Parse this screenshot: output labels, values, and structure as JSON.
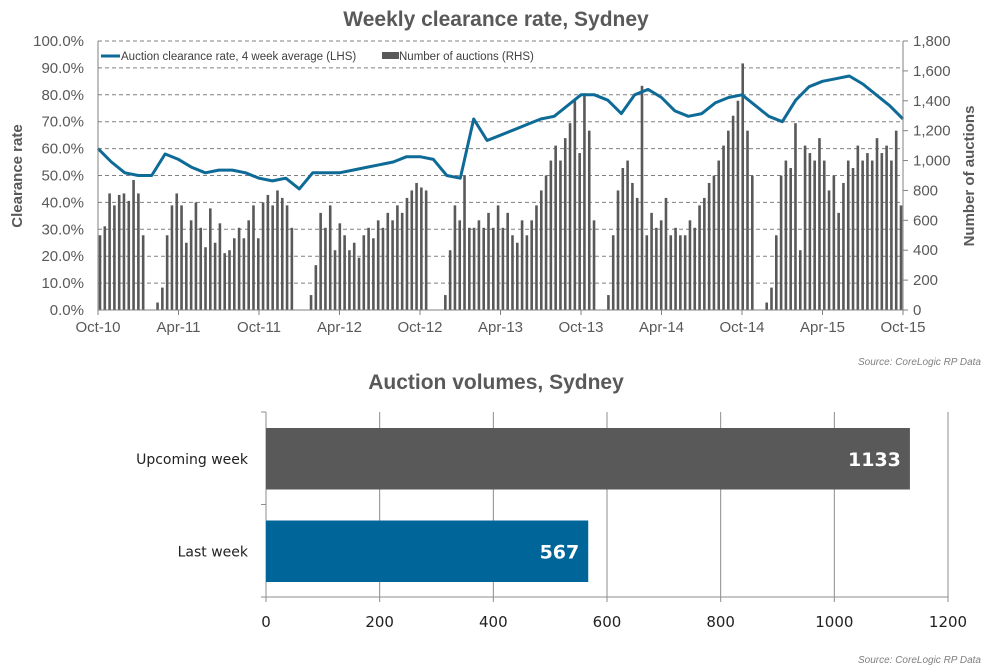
{
  "chart_data": [
    {
      "type": "bar+line",
      "title": "Weekly clearance rate, Sydney",
      "ylabel_left": "Clearance rate",
      "ylabel_right": "Number of auctions",
      "ylim_left": [
        0,
        100
      ],
      "ylim_right": [
        0,
        1800
      ],
      "left_ticks": [
        "0.0%",
        "10.0%",
        "20.0%",
        "30.0%",
        "40.0%",
        "50.0%",
        "60.0%",
        "70.0%",
        "80.0%",
        "90.0%",
        "100.0%"
      ],
      "right_ticks": [
        "0",
        "200",
        "400",
        "600",
        "800",
        "1,000",
        "1,200",
        "1,400",
        "1,600",
        "1,800"
      ],
      "x_ticks": [
        "Oct-10",
        "Apr-11",
        "Oct-11",
        "Apr-12",
        "Oct-12",
        "Apr-13",
        "Oct-13",
        "Apr-14",
        "Oct-14",
        "Apr-15",
        "Oct-15"
      ],
      "grid": true,
      "legend_position": "top-left",
      "colors": {
        "line": "#0e6a96",
        "bars": "#595959"
      },
      "series": [
        {
          "name": "Auction clearance rate, 4 week average (LHS)",
          "type": "line",
          "frequency": "monthly approx, Oct-10 to Oct-15",
          "values": [
            60,
            55,
            51,
            50,
            50,
            58,
            56,
            53,
            51,
            52,
            52,
            51,
            49,
            48,
            49,
            45,
            51,
            51,
            51,
            52,
            53,
            54,
            55,
            57,
            57,
            56,
            50,
            49,
            71,
            63,
            65,
            67,
            69,
            71,
            72,
            76,
            80,
            80,
            78,
            73,
            80,
            82,
            79,
            74,
            72,
            73,
            77,
            79,
            80,
            76,
            72,
            70,
            78,
            83,
            85,
            86,
            87,
            84,
            80,
            76,
            71
          ]
        },
        {
          "name": "Number of auctions (RHS)",
          "type": "bar",
          "frequency": "fortnightly approx, Oct-10 to Oct-15",
          "values": [
            500,
            560,
            780,
            700,
            770,
            780,
            730,
            870,
            780,
            500,
            0,
            0,
            50,
            150,
            500,
            700,
            780,
            700,
            450,
            600,
            720,
            550,
            420,
            680,
            450,
            580,
            380,
            400,
            480,
            550,
            480,
            600,
            700,
            480,
            720,
            770,
            700,
            800,
            750,
            700,
            550,
            0,
            0,
            0,
            100,
            300,
            650,
            550,
            700,
            400,
            580,
            500,
            400,
            450,
            350,
            500,
            550,
            480,
            600,
            550,
            650,
            600,
            700,
            650,
            750,
            800,
            850,
            820,
            800,
            0,
            0,
            0,
            100,
            400,
            700,
            600,
            900,
            550,
            550,
            600,
            550,
            650,
            550,
            700,
            550,
            650,
            500,
            450,
            600,
            500,
            600,
            700,
            800,
            900,
            1000,
            1100,
            1000,
            1150,
            1250,
            1400,
            1050,
            1450,
            1200,
            600,
            0,
            0,
            100,
            500,
            800,
            950,
            1000,
            850,
            750,
            1500,
            500,
            650,
            550,
            600,
            750,
            500,
            550,
            500,
            500,
            600,
            550,
            700,
            750,
            850,
            900,
            1000,
            1100,
            1200,
            1300,
            1400,
            1650,
            1200,
            900,
            0,
            0,
            50,
            150,
            500,
            900,
            1000,
            950,
            1250,
            400,
            1100,
            1050,
            1000,
            1150,
            1000,
            800,
            900,
            650,
            850,
            1000,
            950,
            1100,
            1000,
            1050,
            1000,
            1150,
            1050,
            1100,
            1000,
            1200,
            700
          ]
        }
      ],
      "source": "Source: CoreLogic  RP Data"
    },
    {
      "type": "bar",
      "orientation": "horizontal",
      "title": "Auction volumes, Sydney",
      "categories": [
        "Upcoming week",
        "Last week"
      ],
      "values": [
        1133,
        567
      ],
      "value_labels": [
        "1133",
        "567"
      ],
      "colors": [
        "#595959",
        "#006699"
      ],
      "xlim": [
        0,
        1200
      ],
      "x_ticks": [
        "0",
        "200",
        "400",
        "600",
        "800",
        "1000",
        "1200"
      ],
      "grid": true,
      "source": "Source: CoreLogic  RP Data"
    }
  ]
}
